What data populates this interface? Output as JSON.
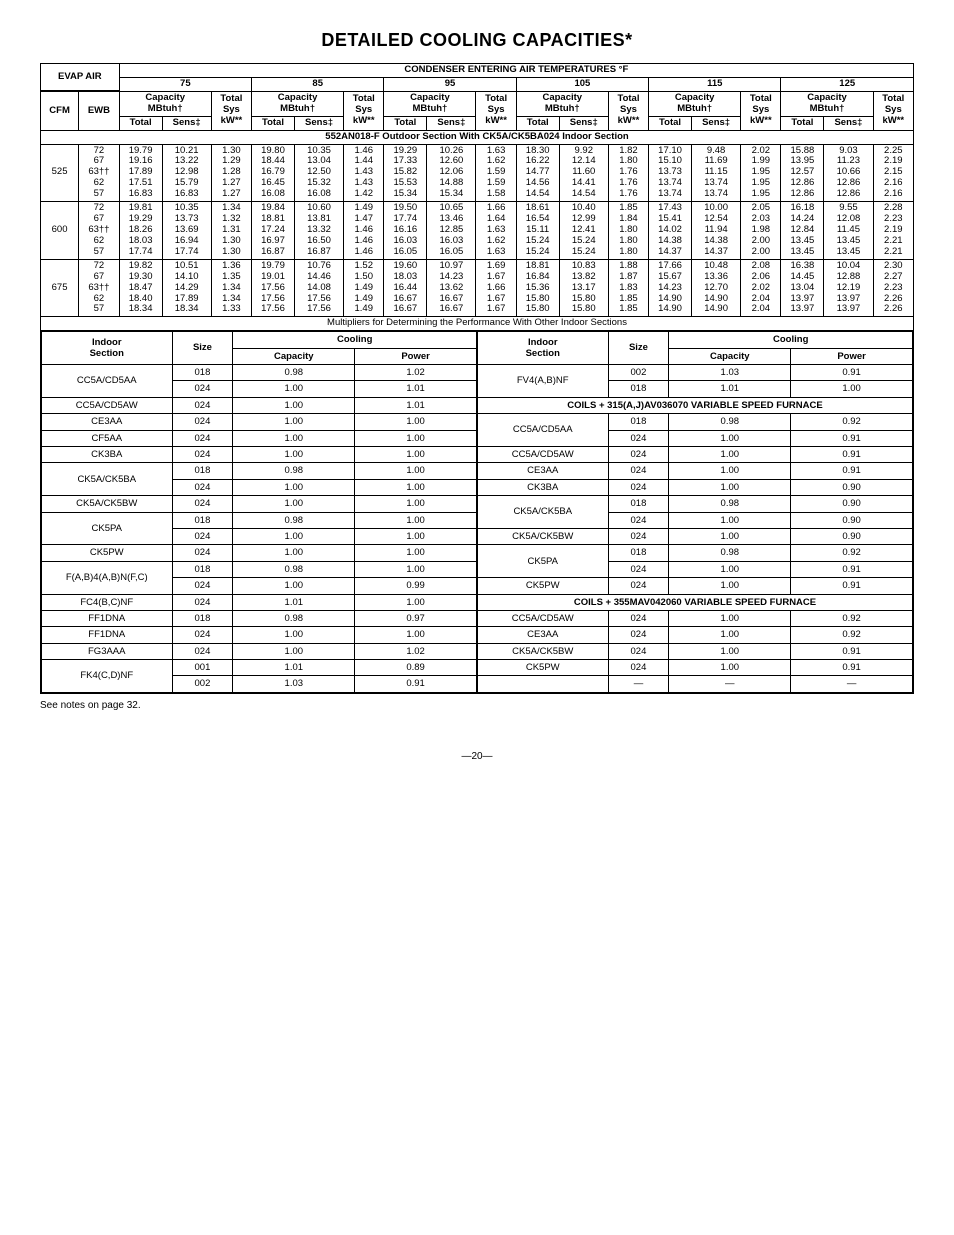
{
  "title": "DETAILED COOLING CAPACITIES*",
  "header": {
    "evap_air": "EVAP AIR",
    "condenser": "CONDENSER ENTERING AIR TEMPERATURES °F",
    "temps": [
      "75",
      "85",
      "95",
      "105",
      "115",
      "125"
    ],
    "capacity": "Capacity MBtuh†",
    "total_sys": "Total Sys kW**",
    "cfm": "CFM",
    "ewb": "EWB",
    "total": "Total",
    "sens": "Sens‡"
  },
  "section_bar": "552AN018-F Outdoor Section With CK5A/CK5BA024 Indoor Section",
  "blocks": [
    {
      "cfm": "525",
      "ewbs": [
        "72",
        "67",
        "63††",
        "62",
        "57"
      ],
      "rows": [
        [
          "19.79",
          "10.21",
          "1.30",
          "19.80",
          "10.35",
          "1.46",
          "19.29",
          "10.26",
          "1.63",
          "18.30",
          "9.92",
          "1.82",
          "17.10",
          "9.48",
          "2.02",
          "15.88",
          "9.03",
          "2.25"
        ],
        [
          "19.16",
          "13.22",
          "1.29",
          "18.44",
          "13.04",
          "1.44",
          "17.33",
          "12.60",
          "1.62",
          "16.22",
          "12.14",
          "1.80",
          "15.10",
          "11.69",
          "1.99",
          "13.95",
          "11.23",
          "2.19"
        ],
        [
          "17.89",
          "12.98",
          "1.28",
          "16.79",
          "12.50",
          "1.43",
          "15.82",
          "12.06",
          "1.59",
          "14.77",
          "11.60",
          "1.76",
          "13.73",
          "11.15",
          "1.95",
          "12.57",
          "10.66",
          "2.15"
        ],
        [
          "17.51",
          "15.79",
          "1.27",
          "16.45",
          "15.32",
          "1.43",
          "15.53",
          "14.88",
          "1.59",
          "14.56",
          "14.41",
          "1.76",
          "13.74",
          "13.74",
          "1.95",
          "12.86",
          "12.86",
          "2.16"
        ],
        [
          "16.83",
          "16.83",
          "1.27",
          "16.08",
          "16.08",
          "1.42",
          "15.34",
          "15.34",
          "1.58",
          "14.54",
          "14.54",
          "1.76",
          "13.74",
          "13.74",
          "1.95",
          "12.86",
          "12.86",
          "2.16"
        ]
      ]
    },
    {
      "cfm": "600",
      "ewbs": [
        "72",
        "67",
        "63††",
        "62",
        "57"
      ],
      "rows": [
        [
          "19.81",
          "10.35",
          "1.34",
          "19.84",
          "10.60",
          "1.49",
          "19.50",
          "10.65",
          "1.66",
          "18.61",
          "10.40",
          "1.85",
          "17.43",
          "10.00",
          "2.05",
          "16.18",
          "9.55",
          "2.28"
        ],
        [
          "19.29",
          "13.73",
          "1.32",
          "18.81",
          "13.81",
          "1.47",
          "17.74",
          "13.46",
          "1.64",
          "16.54",
          "12.99",
          "1.84",
          "15.41",
          "12.54",
          "2.03",
          "14.24",
          "12.08",
          "2.23"
        ],
        [
          "18.26",
          "13.69",
          "1.31",
          "17.24",
          "13.32",
          "1.46",
          "16.16",
          "12.85",
          "1.63",
          "15.11",
          "12.41",
          "1.80",
          "14.02",
          "11.94",
          "1.98",
          "12.84",
          "11.45",
          "2.19"
        ],
        [
          "18.03",
          "16.94",
          "1.30",
          "16.97",
          "16.50",
          "1.46",
          "16.03",
          "16.03",
          "1.62",
          "15.24",
          "15.24",
          "1.80",
          "14.38",
          "14.38",
          "2.00",
          "13.45",
          "13.45",
          "2.21"
        ],
        [
          "17.74",
          "17.74",
          "1.30",
          "16.87",
          "16.87",
          "1.46",
          "16.05",
          "16.05",
          "1.63",
          "15.24",
          "15.24",
          "1.80",
          "14.37",
          "14.37",
          "2.00",
          "13.45",
          "13.45",
          "2.21"
        ]
      ]
    },
    {
      "cfm": "675",
      "ewbs": [
        "72",
        "67",
        "63††",
        "62",
        "57"
      ],
      "rows": [
        [
          "19.82",
          "10.51",
          "1.36",
          "19.79",
          "10.76",
          "1.52",
          "19.60",
          "10.97",
          "1.69",
          "18.81",
          "10.83",
          "1.88",
          "17.66",
          "10.48",
          "2.08",
          "16.38",
          "10.04",
          "2.30"
        ],
        [
          "19.30",
          "14.10",
          "1.35",
          "19.01",
          "14.46",
          "1.50",
          "18.03",
          "14.23",
          "1.67",
          "16.84",
          "13.82",
          "1.87",
          "15.67",
          "13.36",
          "2.06",
          "14.45",
          "12.88",
          "2.27"
        ],
        [
          "18.47",
          "14.29",
          "1.34",
          "17.56",
          "14.08",
          "1.49",
          "16.44",
          "13.62",
          "1.66",
          "15.36",
          "13.17",
          "1.83",
          "14.23",
          "12.70",
          "2.02",
          "13.04",
          "12.19",
          "2.23"
        ],
        [
          "18.40",
          "17.89",
          "1.34",
          "17.56",
          "17.56",
          "1.49",
          "16.67",
          "16.67",
          "1.67",
          "15.80",
          "15.80",
          "1.85",
          "14.90",
          "14.90",
          "2.04",
          "13.97",
          "13.97",
          "2.26"
        ],
        [
          "18.34",
          "18.34",
          "1.33",
          "17.56",
          "17.56",
          "1.49",
          "16.67",
          "16.67",
          "1.67",
          "15.80",
          "15.80",
          "1.85",
          "14.90",
          "14.90",
          "2.04",
          "13.97",
          "13.97",
          "2.26"
        ]
      ]
    }
  ],
  "mult_bar": "Multipliers for Determining the Performance With Other Indoor Sections",
  "mult_head": {
    "indoor": "Indoor Section",
    "size": "Size",
    "cooling": "Cooling",
    "capacity": "Capacity",
    "power": "Power"
  },
  "mult_left": [
    {
      "section": "CC5A/CD5AA",
      "sizes": [
        [
          "018",
          "0.98",
          "1.02"
        ],
        [
          "024",
          "1.00",
          "1.01"
        ]
      ]
    },
    {
      "section": "CC5A/CD5AW",
      "sizes": [
        [
          "024",
          "1.00",
          "1.01"
        ]
      ]
    },
    {
      "section": "CE3AA",
      "sizes": [
        [
          "024",
          "1.00",
          "1.00"
        ]
      ]
    },
    {
      "section": "CF5AA",
      "sizes": [
        [
          "024",
          "1.00",
          "1.00"
        ]
      ]
    },
    {
      "section": "CK3BA",
      "sizes": [
        [
          "024",
          "1.00",
          "1.00"
        ]
      ]
    },
    {
      "section": "CK5A/CK5BA",
      "sizes": [
        [
          "018",
          "0.98",
          "1.00"
        ],
        [
          "024",
          "1.00",
          "1.00"
        ]
      ]
    },
    {
      "section": "CK5A/CK5BW",
      "sizes": [
        [
          "024",
          "1.00",
          "1.00"
        ]
      ]
    },
    {
      "section": "CK5PA",
      "sizes": [
        [
          "018",
          "0.98",
          "1.00"
        ],
        [
          "024",
          "1.00",
          "1.00"
        ]
      ]
    },
    {
      "section": "CK5PW",
      "sizes": [
        [
          "024",
          "1.00",
          "1.00"
        ]
      ]
    },
    {
      "section": "F(A,B)4(A,B)N(F,C)",
      "sizes": [
        [
          "018",
          "0.98",
          "1.00"
        ],
        [
          "024",
          "1.00",
          "0.99"
        ]
      ]
    },
    {
      "section": "FC4(B,C)NF",
      "sizes": [
        [
          "024",
          "1.01",
          "1.00"
        ]
      ]
    },
    {
      "section": "FF1DNA",
      "sizes": [
        [
          "018",
          "0.98",
          "0.97"
        ]
      ]
    },
    {
      "section": "FF1DNA",
      "sizes": [
        [
          "024",
          "1.00",
          "1.00"
        ]
      ]
    },
    {
      "section": "FG3AAA",
      "sizes": [
        [
          "024",
          "1.00",
          "1.02"
        ]
      ]
    },
    {
      "section": "FK4(C,D)NF",
      "sizes": [
        [
          "001",
          "1.01",
          "0.89"
        ],
        [
          "002",
          "1.03",
          "0.91"
        ]
      ]
    }
  ],
  "mult_right": [
    {
      "section": "FV4(A,B)NF",
      "sizes": [
        [
          "002",
          "1.03",
          "0.91"
        ],
        [
          "018",
          "1.01",
          "1.00"
        ]
      ]
    },
    {
      "section_bar": "COILS + 315(A,J)AV036070 VARIABLE SPEED FURNACE"
    },
    {
      "section": "CC5A/CD5AA",
      "sizes": [
        [
          "018",
          "0.98",
          "0.92"
        ],
        [
          "024",
          "1.00",
          "0.91"
        ]
      ]
    },
    {
      "section": "CC5A/CD5AW",
      "sizes": [
        [
          "024",
          "1.00",
          "0.91"
        ]
      ]
    },
    {
      "section": "CE3AA",
      "sizes": [
        [
          "024",
          "1.00",
          "0.91"
        ]
      ]
    },
    {
      "section": "CK3BA",
      "sizes": [
        [
          "024",
          "1.00",
          "0.90"
        ]
      ]
    },
    {
      "section": "CK5A/CK5BA",
      "sizes": [
        [
          "018",
          "0.98",
          "0.90"
        ],
        [
          "024",
          "1.00",
          "0.90"
        ]
      ]
    },
    {
      "section": "CK5A/CK5BW",
      "sizes": [
        [
          "024",
          "1.00",
          "0.90"
        ]
      ]
    },
    {
      "section": "CK5PA",
      "sizes": [
        [
          "018",
          "0.98",
          "0.92"
        ],
        [
          "024",
          "1.00",
          "0.91"
        ]
      ]
    },
    {
      "section": "CK5PW",
      "sizes": [
        [
          "024",
          "1.00",
          "0.91"
        ]
      ]
    },
    {
      "section_bar": "COILS + 355MAV042060 VARIABLE SPEED FURNACE"
    },
    {
      "section": "CC5A/CD5AW",
      "sizes": [
        [
          "024",
          "1.00",
          "0.92"
        ]
      ]
    },
    {
      "section": "CE3AA",
      "sizes": [
        [
          "024",
          "1.00",
          "0.92"
        ]
      ]
    },
    {
      "section": "CK5A/CK5BW",
      "sizes": [
        [
          "024",
          "1.00",
          "0.91"
        ]
      ]
    },
    {
      "section": "CK5PW",
      "sizes": [
        [
          "024",
          "1.00",
          "0.91"
        ]
      ]
    },
    {
      "section": "",
      "sizes": [
        [
          "—",
          "—",
          "—"
        ]
      ]
    }
  ],
  "footnote": "See notes on page 32.",
  "page_num": "—20—"
}
